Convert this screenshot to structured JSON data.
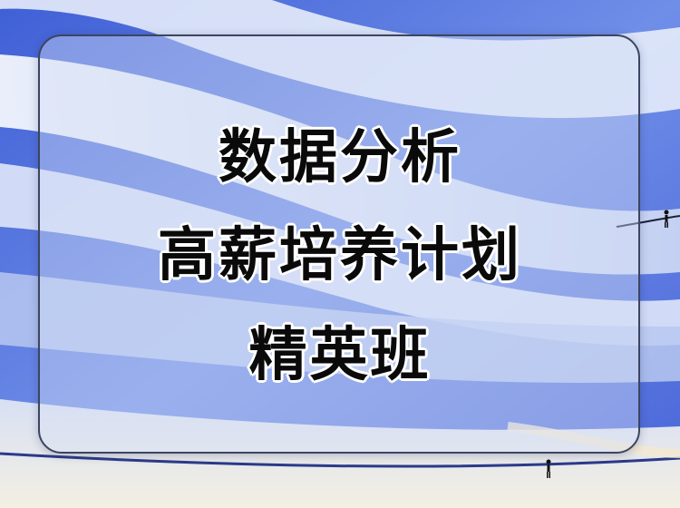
{
  "title": {
    "line1": "数据分析",
    "line2": "高薪培养计划",
    "line3": "精英班"
  },
  "colors": {
    "sky_blue": "#4f6fe0",
    "light_band": "#e9eefa",
    "card_border": "#3c4560",
    "text": "#0a0a0a"
  },
  "icons": {
    "figures": "walking-person-silhouette"
  }
}
